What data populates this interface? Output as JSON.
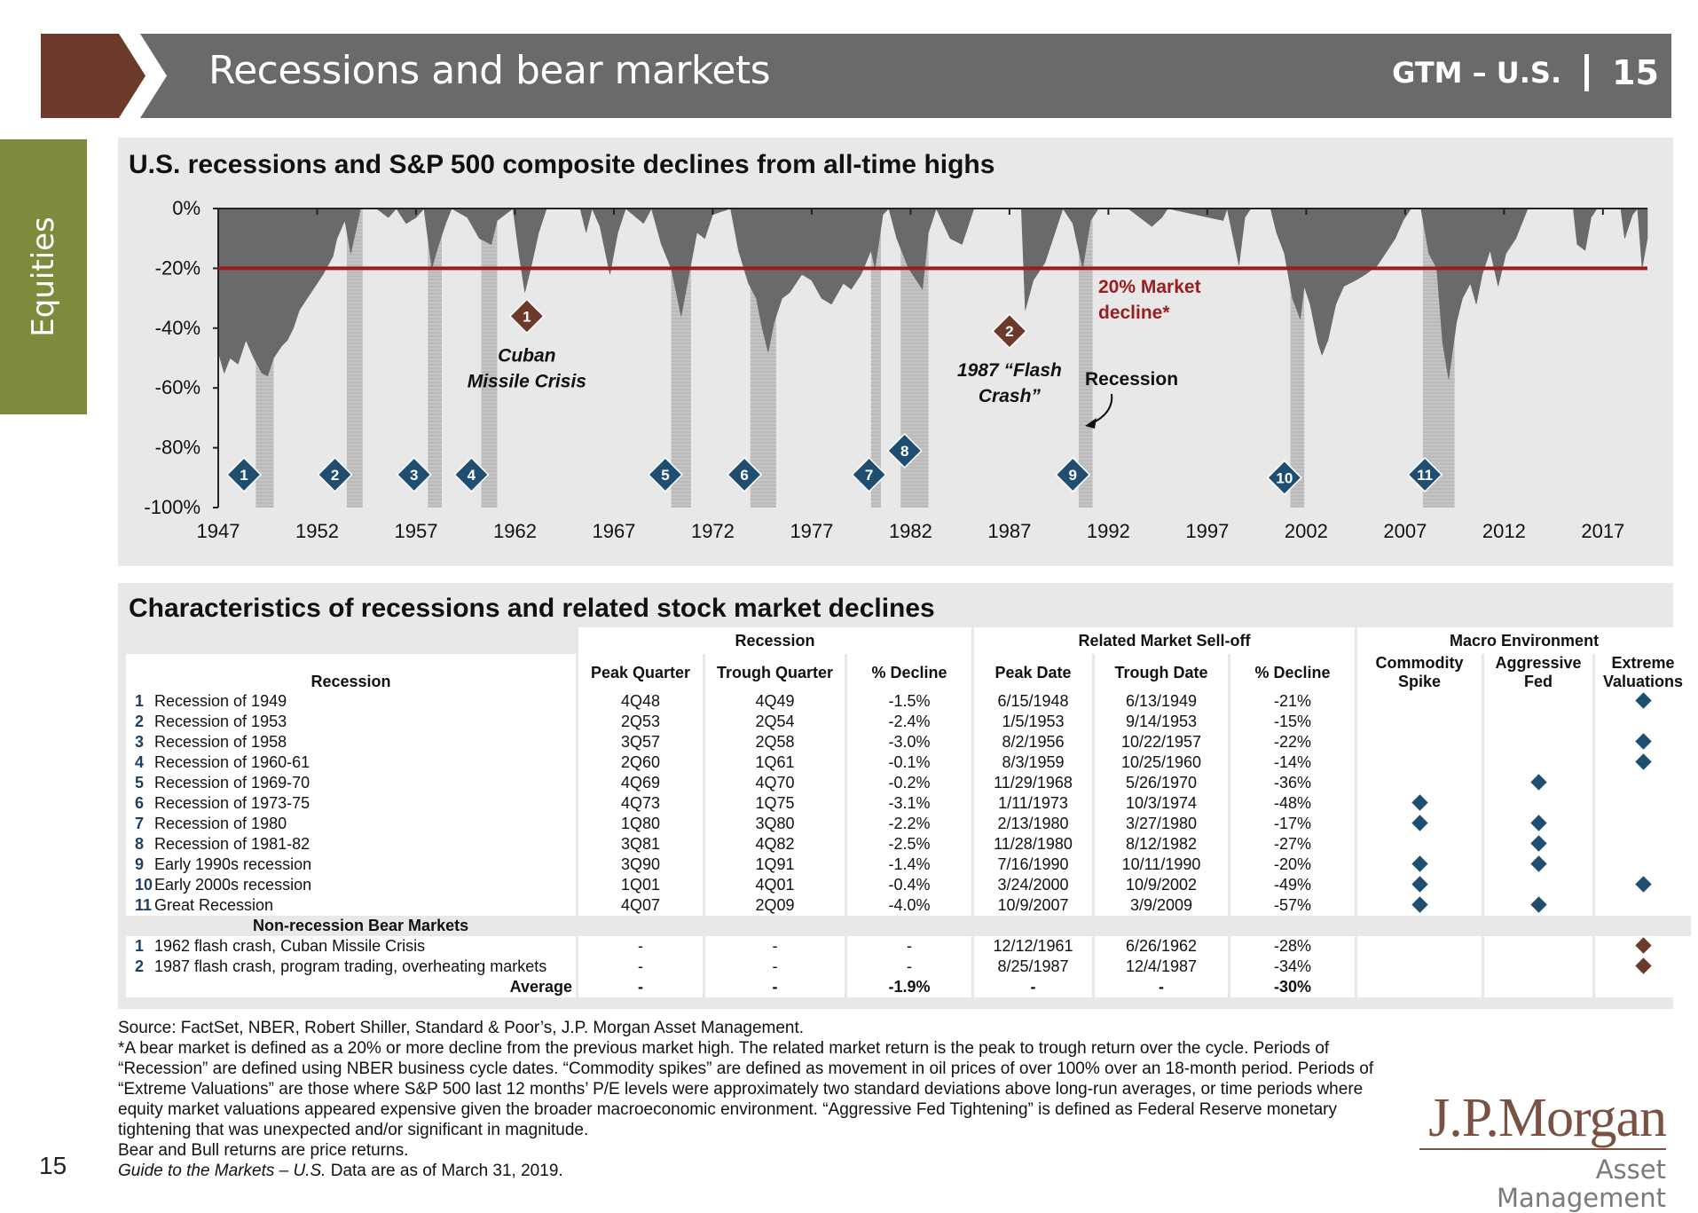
{
  "header": {
    "title": "Recessions and bear markets",
    "guide": "GTM – U.S.",
    "page": "15",
    "colors": {
      "bar": "#6a6a6a",
      "arrow": "#6b3a2a"
    }
  },
  "side_tab": {
    "label": "Equities",
    "color": "#7f8b3c"
  },
  "chart_data": {
    "type": "area",
    "title": "U.S. recessions and S&P 500 composite declines from all-time highs",
    "xlabel": "",
    "ylabel": "",
    "xlim": [
      1947,
      2019.25
    ],
    "ylim": [
      -100,
      0
    ],
    "y_ticks": [
      "0%",
      "-20%",
      "-40%",
      "-60%",
      "-80%",
      "-100%"
    ],
    "x_ticks": [
      "1947",
      "1952",
      "1957",
      "1962",
      "1967",
      "1972",
      "1977",
      "1982",
      "1987",
      "1992",
      "1997",
      "2002",
      "2007",
      "2012",
      "2017"
    ],
    "series": [
      {
        "values": [
          [
            1947.0,
            -48
          ],
          [
            1947.3,
            -55
          ],
          [
            1947.6,
            -50
          ],
          [
            1948.0,
            -52
          ],
          [
            1948.4,
            -44
          ],
          [
            1948.8,
            -50
          ],
          [
            1949.2,
            -55
          ],
          [
            1949.5,
            -56
          ],
          [
            1949.8,
            -50
          ],
          [
            1950.2,
            -46
          ],
          [
            1950.5,
            -44
          ],
          [
            1950.8,
            -40
          ],
          [
            1951.1,
            -34
          ],
          [
            1951.5,
            -30
          ],
          [
            1951.9,
            -26
          ],
          [
            1952.3,
            -22
          ],
          [
            1952.8,
            -16
          ],
          [
            1953.0,
            -10
          ],
          [
            1953.4,
            -4
          ],
          [
            1953.7,
            -15
          ],
          [
            1954.0,
            -6
          ],
          [
            1954.2,
            0
          ],
          [
            1955.0,
            0
          ],
          [
            1955.6,
            -3
          ],
          [
            1956.0,
            0
          ],
          [
            1956.5,
            -5
          ],
          [
            1957.0,
            -3
          ],
          [
            1957.4,
            0
          ],
          [
            1957.8,
            -20
          ],
          [
            1958.1,
            -13
          ],
          [
            1958.5,
            -5
          ],
          [
            1958.8,
            0
          ],
          [
            1959.6,
            -3
          ],
          [
            1960.2,
            -10
          ],
          [
            1960.8,
            -12
          ],
          [
            1961.1,
            -4
          ],
          [
            1961.9,
            0
          ],
          [
            1962.2,
            -15
          ],
          [
            1962.5,
            -28
          ],
          [
            1962.8,
            -20
          ],
          [
            1963.2,
            -8
          ],
          [
            1963.6,
            0
          ],
          [
            1965.3,
            0
          ],
          [
            1965.6,
            -8
          ],
          [
            1965.9,
            0
          ],
          [
            1966.3,
            -6
          ],
          [
            1966.8,
            -22
          ],
          [
            1967.2,
            -8
          ],
          [
            1967.6,
            0
          ],
          [
            1968.5,
            -5
          ],
          [
            1968.9,
            0
          ],
          [
            1969.4,
            -12
          ],
          [
            1969.9,
            -20
          ],
          [
            1970.4,
            -36
          ],
          [
            1970.8,
            -22
          ],
          [
            1971.2,
            -8
          ],
          [
            1971.6,
            -10
          ],
          [
            1972.0,
            -2
          ],
          [
            1972.9,
            0
          ],
          [
            1973.3,
            -14
          ],
          [
            1973.8,
            -25
          ],
          [
            1974.2,
            -30
          ],
          [
            1974.5,
            -40
          ],
          [
            1974.8,
            -48
          ],
          [
            1975.1,
            -38
          ],
          [
            1975.5,
            -30
          ],
          [
            1975.9,
            -28
          ],
          [
            1976.5,
            -22
          ],
          [
            1977.0,
            -24
          ],
          [
            1977.5,
            -30
          ],
          [
            1978.0,
            -32
          ],
          [
            1978.6,
            -25
          ],
          [
            1979.0,
            -27
          ],
          [
            1979.5,
            -22
          ],
          [
            1980.0,
            -14
          ],
          [
            1980.2,
            -20
          ],
          [
            1980.6,
            -2
          ],
          [
            1980.9,
            0
          ],
          [
            1981.3,
            -10
          ],
          [
            1981.9,
            -20
          ],
          [
            1982.6,
            -27
          ],
          [
            1982.9,
            -8
          ],
          [
            1983.3,
            0
          ],
          [
            1984.0,
            -10
          ],
          [
            1984.6,
            -12
          ],
          [
            1985.2,
            0
          ],
          [
            1987.6,
            0
          ],
          [
            1987.8,
            -34
          ],
          [
            1988.2,
            -24
          ],
          [
            1988.8,
            -18
          ],
          [
            1989.3,
            -8
          ],
          [
            1989.7,
            0
          ],
          [
            1990.2,
            -5
          ],
          [
            1990.7,
            -20
          ],
          [
            1991.1,
            -4
          ],
          [
            1991.5,
            0
          ],
          [
            1993.0,
            0
          ],
          [
            1994.2,
            -6
          ],
          [
            1994.7,
            -3
          ],
          [
            1995.0,
            0
          ],
          [
            1997.8,
            -4
          ],
          [
            1998.0,
            0
          ],
          [
            1998.6,
            -19
          ],
          [
            1998.9,
            -3
          ],
          [
            1999.2,
            0
          ],
          [
            2000.2,
            0
          ],
          [
            2000.5,
            -8
          ],
          [
            2000.9,
            -15
          ],
          [
            2001.3,
            -30
          ],
          [
            2001.7,
            -37
          ],
          [
            2001.9,
            -26
          ],
          [
            2002.2,
            -32
          ],
          [
            2002.6,
            -45
          ],
          [
            2002.8,
            -49
          ],
          [
            2003.1,
            -44
          ],
          [
            2003.5,
            -32
          ],
          [
            2003.9,
            -26
          ],
          [
            2004.5,
            -24
          ],
          [
            2005.0,
            -22
          ],
          [
            2005.6,
            -19
          ],
          [
            2006.1,
            -14
          ],
          [
            2006.5,
            -10
          ],
          [
            2006.9,
            -4
          ],
          [
            2007.3,
            0
          ],
          [
            2007.8,
            0
          ],
          [
            2008.2,
            -15
          ],
          [
            2008.6,
            -20
          ],
          [
            2008.9,
            -45
          ],
          [
            2009.2,
            -57
          ],
          [
            2009.6,
            -38
          ],
          [
            2009.9,
            -30
          ],
          [
            2010.3,
            -25
          ],
          [
            2010.6,
            -32
          ],
          [
            2010.9,
            -22
          ],
          [
            2011.3,
            -14
          ],
          [
            2011.7,
            -26
          ],
          [
            2012.1,
            -15
          ],
          [
            2012.6,
            -10
          ],
          [
            2013.2,
            0
          ],
          [
            2015.5,
            0
          ],
          [
            2015.7,
            -12
          ],
          [
            2016.1,
            -14
          ],
          [
            2016.4,
            -3
          ],
          [
            2016.7,
            0
          ],
          [
            2017.9,
            0
          ],
          [
            2018.1,
            -10
          ],
          [
            2018.5,
            -2
          ],
          [
            2018.75,
            0
          ],
          [
            2018.98,
            -20
          ],
          [
            2019.25,
            -10
          ]
        ]
      }
    ],
    "threshold": {
      "value": -20,
      "label": "20% Market decline*",
      "color": "#9b1c1c"
    },
    "recession_bands": [
      [
        1948.9,
        1949.8
      ],
      [
        1953.5,
        1954.3
      ],
      [
        1957.6,
        1958.3
      ],
      [
        1960.3,
        1961.1
      ],
      [
        1969.9,
        1970.9
      ],
      [
        1973.9,
        1975.2
      ],
      [
        1980.0,
        1980.5
      ],
      [
        1981.5,
        1982.9
      ],
      [
        1990.5,
        1991.2
      ],
      [
        2001.2,
        2001.9
      ],
      [
        2007.9,
        2009.5
      ]
    ],
    "recession_markers": [
      {
        "label": "1",
        "x": 1948.3,
        "y": -89
      },
      {
        "label": "2",
        "x": 1952.9,
        "y": -89
      },
      {
        "label": "3",
        "x": 1956.9,
        "y": -89
      },
      {
        "label": "4",
        "x": 1959.8,
        "y": -89
      },
      {
        "label": "5",
        "x": 1969.6,
        "y": -89
      },
      {
        "label": "6",
        "x": 1973.6,
        "y": -89
      },
      {
        "label": "7",
        "x": 1979.9,
        "y": -89
      },
      {
        "label": "8",
        "x": 1981.7,
        "y": -81
      },
      {
        "label": "9",
        "x": 1990.2,
        "y": -89
      },
      {
        "label": "10",
        "x": 2000.9,
        "y": -90
      },
      {
        "label": "11",
        "x": 2008.0,
        "y": -89
      }
    ],
    "bear_markers": [
      {
        "label": "1",
        "x": 1962.6,
        "y": -36,
        "text": [
          "Cuban",
          "Missile Crisis"
        ]
      },
      {
        "label": "2",
        "x": 1987.0,
        "y": -41,
        "text": [
          "1987 “Flash",
          "Crash”"
        ]
      }
    ],
    "recession_legend": "Recession",
    "colors": {
      "area": "#6a6a6a",
      "band": "#c4c4c4",
      "marker": "#1f4e70",
      "bear_marker": "#6b3a2a"
    }
  },
  "table": {
    "title": "Characteristics of recessions and related stock market declines",
    "group_headers": [
      "Recession",
      "Related Market Sell-off",
      "Macro Environment"
    ],
    "columns": [
      "Recession",
      "Peak Quarter",
      "Trough Quarter",
      "% Decline",
      "Peak Date",
      "Trough Date",
      "% Decline",
      "Commodity Spike",
      "Aggressive Fed",
      "Extreme Valuations"
    ],
    "rows": [
      {
        "n": "1",
        "name": "Recession of 1949",
        "peak_q": "4Q48",
        "trough_q": "4Q49",
        "rec_decline": "-1.5%",
        "peak_date": "6/15/1948",
        "trough_date": "6/13/1949",
        "mkt_decline": "-21%",
        "commodity": false,
        "fed": false,
        "valuation": true
      },
      {
        "n": "2",
        "name": "Recession of 1953",
        "peak_q": "2Q53",
        "trough_q": "2Q54",
        "rec_decline": "-2.4%",
        "peak_date": "1/5/1953",
        "trough_date": "9/14/1953",
        "mkt_decline": "-15%",
        "commodity": false,
        "fed": false,
        "valuation": false
      },
      {
        "n": "3",
        "name": "Recession of 1958",
        "peak_q": "3Q57",
        "trough_q": "2Q58",
        "rec_decline": "-3.0%",
        "peak_date": "8/2/1956",
        "trough_date": "10/22/1957",
        "mkt_decline": "-22%",
        "commodity": false,
        "fed": false,
        "valuation": true
      },
      {
        "n": "4",
        "name": "Recession of 1960-61",
        "peak_q": "2Q60",
        "trough_q": "1Q61",
        "rec_decline": "-0.1%",
        "peak_date": "8/3/1959",
        "trough_date": "10/25/1960",
        "mkt_decline": "-14%",
        "commodity": false,
        "fed": false,
        "valuation": true
      },
      {
        "n": "5",
        "name": "Recession of 1969-70",
        "peak_q": "4Q69",
        "trough_q": "4Q70",
        "rec_decline": "-0.2%",
        "peak_date": "11/29/1968",
        "trough_date": "5/26/1970",
        "mkt_decline": "-36%",
        "commodity": false,
        "fed": true,
        "valuation": false
      },
      {
        "n": "6",
        "name": "Recession of 1973-75",
        "peak_q": "4Q73",
        "trough_q": "1Q75",
        "rec_decline": "-3.1%",
        "peak_date": "1/11/1973",
        "trough_date": "10/3/1974",
        "mkt_decline": "-48%",
        "commodity": true,
        "fed": false,
        "valuation": false
      },
      {
        "n": "7",
        "name": "Recession of 1980",
        "peak_q": "1Q80",
        "trough_q": "3Q80",
        "rec_decline": "-2.2%",
        "peak_date": "2/13/1980",
        "trough_date": "3/27/1980",
        "mkt_decline": "-17%",
        "commodity": true,
        "fed": true,
        "valuation": false
      },
      {
        "n": "8",
        "name": "Recession of 1981-82",
        "peak_q": "3Q81",
        "trough_q": "4Q82",
        "rec_decline": "-2.5%",
        "peak_date": "11/28/1980",
        "trough_date": "8/12/1982",
        "mkt_decline": "-27%",
        "commodity": false,
        "fed": true,
        "valuation": false
      },
      {
        "n": "9",
        "name": "Early 1990s recession",
        "peak_q": "3Q90",
        "trough_q": "1Q91",
        "rec_decline": "-1.4%",
        "peak_date": "7/16/1990",
        "trough_date": "10/11/1990",
        "mkt_decline": "-20%",
        "commodity": true,
        "fed": true,
        "valuation": false
      },
      {
        "n": "10",
        "name": "Early 2000s recession",
        "peak_q": "1Q01",
        "trough_q": "4Q01",
        "rec_decline": "-0.4%",
        "peak_date": "3/24/2000",
        "trough_date": "10/9/2002",
        "mkt_decline": "-49%",
        "commodity": true,
        "fed": false,
        "valuation": true
      },
      {
        "n": "11",
        "name": "Great Recession",
        "peak_q": "4Q07",
        "trough_q": "2Q09",
        "rec_decline": "-4.0%",
        "peak_date": "10/9/2007",
        "trough_date": "3/9/2009",
        "mkt_decline": "-57%",
        "commodity": true,
        "fed": true,
        "valuation": false
      }
    ],
    "bear_header": "Non-recession Bear Markets",
    "bear_rows": [
      {
        "n": "1",
        "name": "1962 flash crash, Cuban Missile Crisis",
        "peak_q": "-",
        "trough_q": "-",
        "rec_decline": "-",
        "peak_date": "12/12/1961",
        "trough_date": "6/26/1962",
        "mkt_decline": "-28%",
        "valuation": true
      },
      {
        "n": "2",
        "name": "1987 flash crash, program trading, overheating markets",
        "peak_q": "-",
        "trough_q": "-",
        "rec_decline": "-",
        "peak_date": "8/25/1987",
        "trough_date": "12/4/1987",
        "mkt_decline": "-34%",
        "valuation": true
      }
    ],
    "average": {
      "label": "Average",
      "peak_q": "-",
      "trough_q": "-",
      "rec_decline": "-1.9%",
      "peak_date": "-",
      "trough_date": "-",
      "mkt_decline": "-30%"
    }
  },
  "notes": {
    "source": "Source: FactSet, NBER, Robert Shiller, Standard & Poor’s, J.P. Morgan Asset Management.",
    "definition": "*A bear market is defined as a 20% or more decline from the previous market high. The related market return is the peak to trough return over the cycle. Periods of “Recession” are defined using NBER business cycle dates. “Commodity spikes” are defined as movement in oil prices of over 100% over an 18-month period. Periods of “Extreme Valuations” are those where S&P 500 last 12 months’ P/E levels were approximately two standard deviations above long-run averages, or time periods where equity market valuations appeared expensive given the broader macroeconomic environment. “Aggressive Fed Tightening” is defined as Federal Reserve monetary tightening that was unexpected and/or significant in magnitude.",
    "returns": "Bear and Bull returns are price returns.",
    "guide_italic": "Guide to the Markets – U.S.",
    "asof": " Data are as of March 31, 2019."
  },
  "page_number": "15",
  "logo": {
    "top": "J.P.Morgan",
    "bottom": "Asset Management"
  }
}
